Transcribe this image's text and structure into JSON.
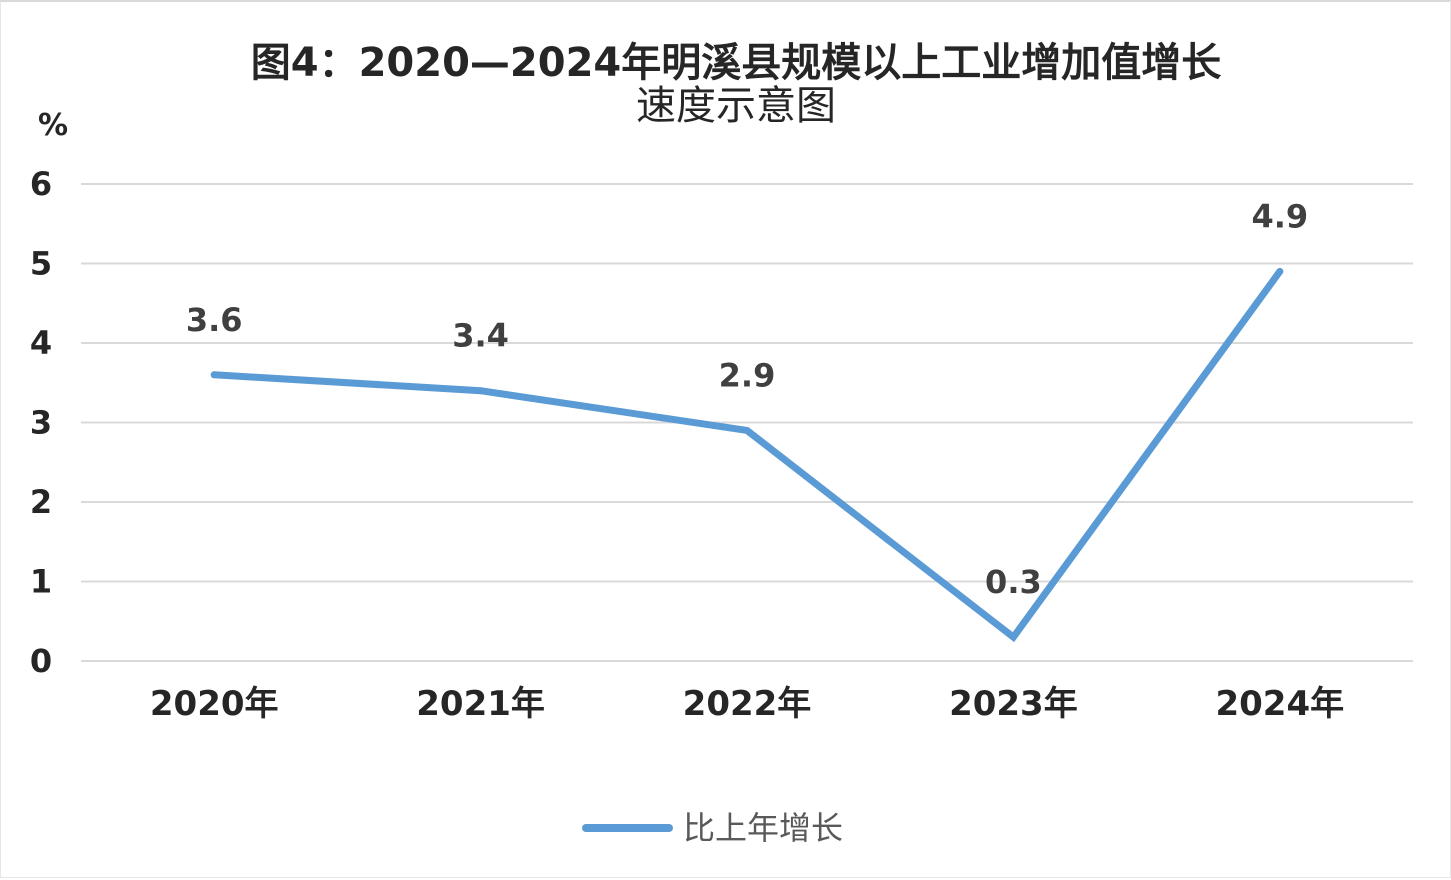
{
  "chart_data": {
    "type": "line",
    "title_line1": "图4：2020—2024年明溪县规模以上工业增加值增长",
    "title_line2": "速度示意图",
    "ylabel": "%",
    "xlabel": "",
    "categories": [
      "2020年",
      "2021年",
      "2022年",
      "2023年",
      "2024年"
    ],
    "series": [
      {
        "name": "比上年增长",
        "values": [
          3.6,
          3.4,
          2.9,
          0.3,
          4.9
        ],
        "color": "#5b9bd5"
      }
    ],
    "data_labels": [
      "3.6",
      "3.4",
      "2.9",
      "0.3",
      "4.9"
    ],
    "yticks": [
      "0",
      "1",
      "2",
      "3",
      "4",
      "5",
      "6"
    ],
    "ylim": [
      0,
      6
    ],
    "grid": true,
    "legend_position": "bottom"
  }
}
